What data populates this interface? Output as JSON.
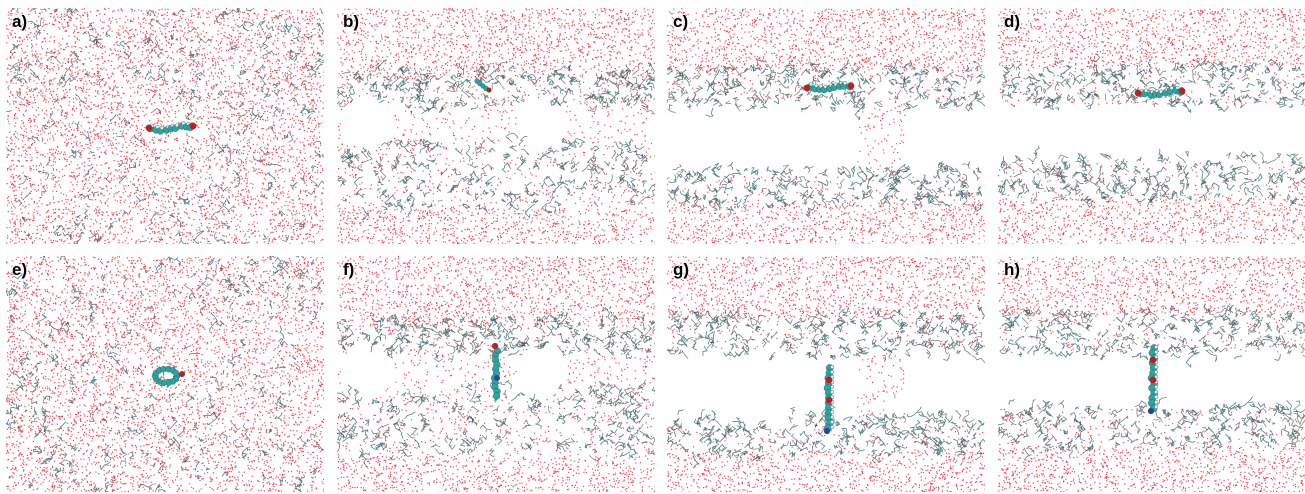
{
  "figure": {
    "panels": [
      {
        "label": "a)",
        "scene": "micelle",
        "molecule": "flat-horizontal"
      },
      {
        "label": "b)",
        "scene": "bicontinuous",
        "molecule": "diagonal-small"
      },
      {
        "label": "c)",
        "scene": "bilayer-neck",
        "molecule": "flat-horizontal"
      },
      {
        "label": "d)",
        "scene": "bilayer",
        "molecule": "flat-horizontal"
      },
      {
        "label": "e)",
        "scene": "micelle",
        "molecule": "ring"
      },
      {
        "label": "f)",
        "scene": "bicontinuous",
        "molecule": "vertical-short"
      },
      {
        "label": "g)",
        "scene": "bilayer-neck",
        "molecule": "vertical-spanning"
      },
      {
        "label": "h)",
        "scene": "bilayer",
        "molecule": "vertical-spanning"
      }
    ],
    "colors": {
      "water": "#e8283a",
      "lipid": "#3c6e73",
      "lipid_dark": "#4a4a4a",
      "carbon": "#2fa3a0",
      "oxygen": "#d01818",
      "nitrogen": "#2a3fb3",
      "hydrogen": "#e6eef0"
    }
  }
}
